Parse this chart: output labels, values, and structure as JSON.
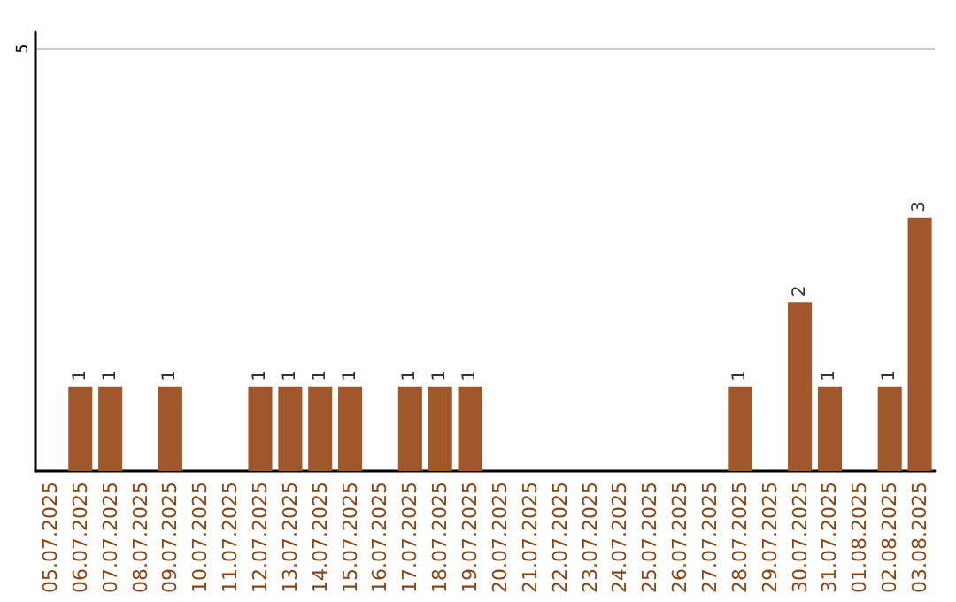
{
  "chart_data": {
    "type": "bar",
    "categories": [
      "05.07.2025",
      "06.07.2025",
      "07.07.2025",
      "08.07.2025",
      "09.07.2025",
      "10.07.2025",
      "11.07.2025",
      "12.07.2025",
      "13.07.2025",
      "14.07.2025",
      "15.07.2025",
      "16.07.2025",
      "17.07.2025",
      "18.07.2025",
      "19.07.2025",
      "20.07.2025",
      "21.07.2025",
      "22.07.2025",
      "23.07.2025",
      "24.07.2025",
      "25.07.2025",
      "26.07.2025",
      "27.07.2025",
      "28.07.2025",
      "29.07.2025",
      "30.07.2025",
      "31.07.2025",
      "01.08.2025",
      "02.08.2025",
      "03.08.2025"
    ],
    "values": [
      null,
      1,
      1,
      null,
      1,
      null,
      null,
      1,
      1,
      1,
      1,
      null,
      1,
      1,
      1,
      null,
      null,
      null,
      null,
      null,
      null,
      null,
      null,
      1,
      null,
      2,
      1,
      null,
      1,
      3
    ],
    "color": "#a0572a",
    "ylim": [
      0,
      5.2
    ],
    "yticks": [
      5
    ],
    "grid": "y",
    "data_labels": true
  }
}
